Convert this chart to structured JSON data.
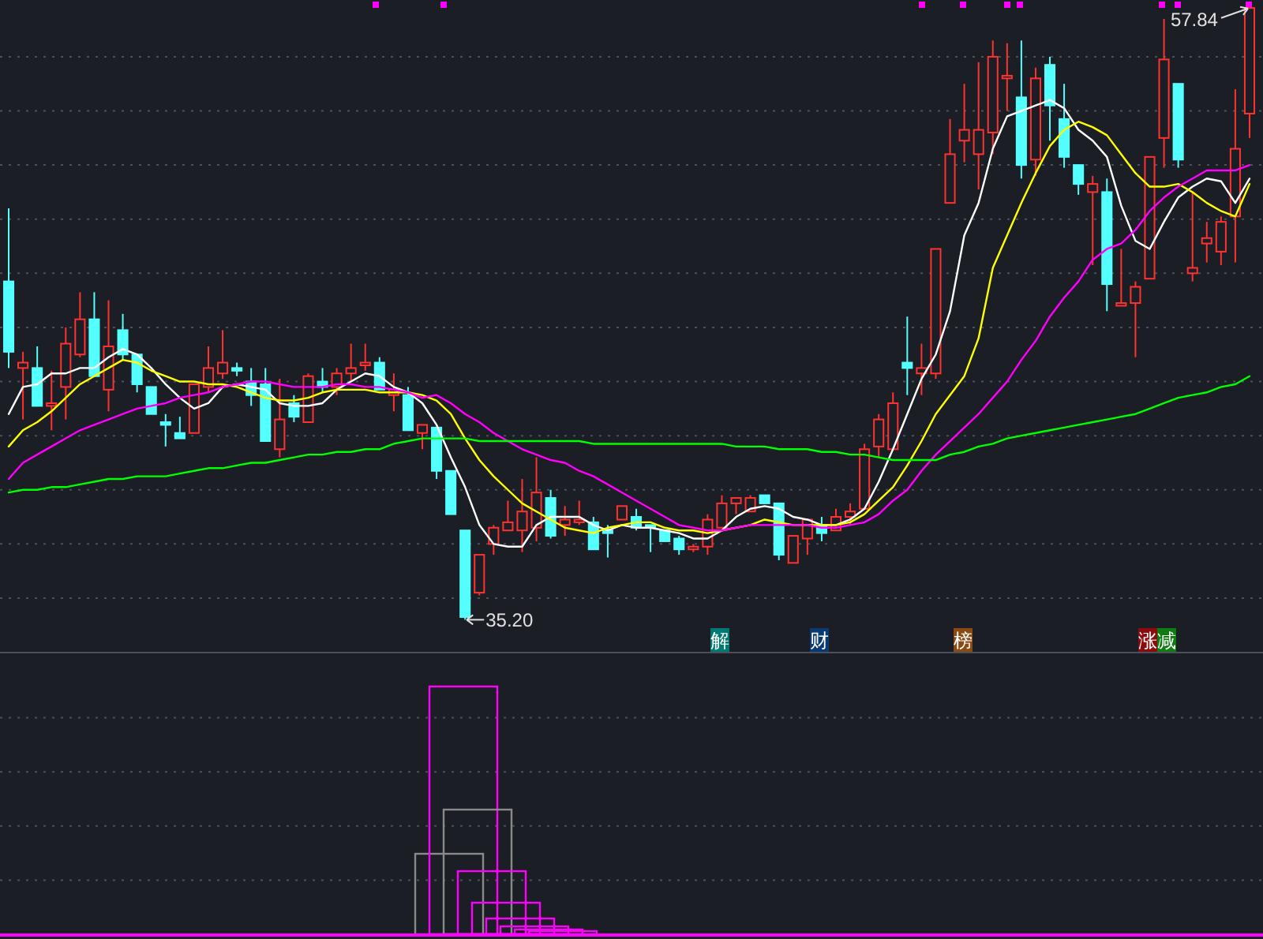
{
  "chart_data": {
    "type": "candlestick",
    "categories": [
      null,
      null,
      null,
      null,
      null,
      null,
      null,
      null,
      null,
      null,
      null,
      null,
      null,
      null,
      null,
      null,
      null,
      null,
      null,
      null,
      null,
      null,
      null,
      null,
      null,
      null,
      null,
      null,
      null,
      null,
      null,
      null,
      null,
      null,
      null,
      null,
      null,
      null,
      null,
      null,
      null,
      null,
      null,
      null,
      null,
      null,
      null,
      null,
      null,
      null,
      null,
      null,
      null,
      null,
      null,
      null,
      null,
      null,
      null,
      null,
      null,
      null,
      null,
      null,
      null,
      null,
      null,
      null,
      null,
      null,
      null,
      null,
      null,
      null,
      null,
      null,
      null,
      null,
      null,
      null,
      null,
      null,
      null,
      null,
      null,
      null,
      null,
      null
    ],
    "ohlc": [
      [
        47.7,
        50.4,
        44.5,
        45.1
      ],
      [
        44.5,
        45.1,
        42.6,
        44.7
      ],
      [
        44.5,
        45.3,
        43.1,
        43.1
      ],
      [
        43.1,
        44.4,
        42.2,
        43.2
      ],
      [
        43.8,
        46.0,
        42.6,
        45.4
      ],
      [
        45.0,
        47.3,
        44.9,
        46.3
      ],
      [
        46.3,
        47.3,
        44.2,
        44.2
      ],
      [
        43.7,
        47.0,
        42.9,
        45.3
      ],
      [
        45.9,
        46.5,
        44.8,
        45.0
      ],
      [
        45.0,
        45.0,
        43.6,
        43.9
      ],
      [
        43.8,
        43.8,
        42.8,
        42.8
      ],
      [
        42.5,
        42.8,
        41.6,
        42.4
      ],
      [
        42.1,
        42.7,
        41.9,
        41.9
      ],
      [
        42.1,
        43.9,
        42.1,
        43.9
      ],
      [
        43.8,
        45.3,
        43.6,
        44.5
      ],
      [
        44.3,
        45.9,
        44.1,
        44.7
      ],
      [
        44.5,
        44.7,
        44.2,
        44.4
      ],
      [
        44.0,
        44.5,
        43.1,
        43.5
      ],
      [
        43.9,
        44.5,
        41.8,
        41.8
      ],
      [
        41.5,
        44.1,
        41.2,
        42.6
      ],
      [
        43.2,
        43.5,
        42.5,
        42.7
      ],
      [
        42.5,
        44.3,
        42.5,
        44.2
      ],
      [
        44.0,
        44.5,
        43.6,
        43.8
      ],
      [
        43.8,
        44.5,
        43.5,
        44.3
      ],
      [
        44.3,
        45.4,
        44.0,
        44.5
      ],
      [
        44.6,
        45.4,
        44.4,
        44.7
      ],
      [
        44.7,
        44.9,
        43.7,
        43.7
      ],
      [
        43.5,
        44.3,
        42.9,
        43.7
      ],
      [
        43.5,
        43.8,
        42.2,
        42.2
      ],
      [
        42.1,
        42.4,
        41.5,
        42.4
      ],
      [
        42.3,
        42.3,
        40.4,
        40.7
      ],
      [
        40.7,
        40.7,
        39.1,
        39.1
      ],
      [
        38.5,
        38.5,
        35.2,
        35.3
      ],
      [
        36.2,
        37.6,
        36.1,
        37.6
      ],
      [
        38.0,
        38.7,
        37.6,
        38.6
      ],
      [
        38.5,
        39.6,
        38.5,
        38.8
      ],
      [
        38.5,
        40.4,
        37.7,
        39.2
      ],
      [
        38.6,
        41.2,
        38.1,
        39.9
      ],
      [
        39.7,
        40.0,
        38.2,
        38.3
      ],
      [
        38.7,
        39.4,
        38.3,
        38.9
      ],
      [
        38.8,
        39.6,
        38.7,
        38.9
      ],
      [
        38.8,
        39.0,
        37.8,
        37.8
      ],
      [
        38.5,
        38.7,
        37.5,
        38.4
      ],
      [
        38.9,
        39.4,
        38.9,
        39.4
      ],
      [
        39.0,
        39.3,
        38.5,
        38.6
      ],
      [
        38.7,
        38.7,
        37.7,
        38.6
      ],
      [
        38.5,
        38.5,
        38.1,
        38.1
      ],
      [
        38.2,
        38.3,
        37.6,
        37.8
      ],
      [
        37.8,
        38.0,
        37.7,
        37.9
      ],
      [
        37.9,
        39.1,
        37.6,
        38.9
      ],
      [
        38.6,
        39.8,
        38.6,
        39.5
      ],
      [
        39.5,
        39.7,
        39.1,
        39.7
      ],
      [
        39.2,
        39.8,
        39.2,
        39.7
      ],
      [
        39.8,
        39.8,
        39.5,
        39.5
      ],
      [
        39.5,
        39.5,
        37.4,
        37.6
      ],
      [
        37.3,
        38.3,
        37.3,
        38.3
      ],
      [
        38.2,
        38.9,
        37.6,
        38.9
      ],
      [
        38.7,
        39.0,
        38.1,
        38.4
      ],
      [
        38.5,
        39.3,
        38.5,
        39.0
      ],
      [
        39.0,
        39.5,
        38.7,
        39.2
      ],
      [
        39.3,
        41.7,
        39.3,
        41.5
      ],
      [
        41.6,
        42.8,
        41.2,
        42.6
      ],
      [
        41.5,
        43.6,
        41.5,
        43.2
      ],
      [
        44.7,
        46.4,
        43.5,
        44.5
      ],
      [
        44.3,
        45.4,
        43.5,
        44.5
      ],
      [
        44.3,
        48.9,
        44.1,
        48.9
      ],
      [
        50.6,
        53.7,
        50.6,
        52.4
      ],
      [
        52.9,
        55.0,
        52.1,
        53.3
      ],
      [
        52.4,
        55.8,
        51.1,
        53.3
      ],
      [
        53.2,
        56.6,
        52.4,
        56.0
      ],
      [
        55.2,
        56.5,
        54.0,
        55.3
      ],
      [
        54.5,
        56.6,
        51.5,
        52.0
      ],
      [
        52.2,
        55.6,
        51.6,
        55.2
      ],
      [
        55.7,
        56.0,
        52.9,
        54.2
      ],
      [
        53.7,
        55.0,
        51.9,
        52.3
      ],
      [
        52.0,
        52.0,
        50.9,
        51.3
      ],
      [
        51.0,
        51.6,
        48.3,
        51.3
      ],
      [
        51.0,
        51.5,
        46.6,
        47.6
      ],
      [
        46.8,
        48.9,
        46.8,
        46.9
      ],
      [
        46.9,
        47.7,
        44.9,
        47.5
      ],
      [
        47.8,
        52.3,
        47.8,
        52.3
      ],
      [
        53.0,
        57.4,
        51.9,
        55.9
      ],
      [
        55.0,
        55.0,
        51.9,
        52.2
      ],
      [
        48.0,
        51.0,
        47.7,
        48.2
      ],
      [
        49.1,
        49.9,
        48.4,
        49.3
      ],
      [
        48.8,
        50.1,
        48.3,
        49.9
      ],
      [
        50.1,
        54.8,
        48.4,
        52.6
      ],
      [
        53.9,
        57.84,
        53.0,
        57.8
      ]
    ],
    "colors": [
      "#54ffff",
      "#ff3232",
      "#54ffff",
      "#ff3232",
      "#ff3232",
      "#ff3232",
      "#54ffff",
      "#ff3232",
      "#54ffff",
      "#54ffff",
      "#54ffff",
      "#54ffff",
      "#54ffff",
      "#ff3232",
      "#ff3232",
      "#ff3232",
      "#54ffff",
      "#54ffff",
      "#54ffff",
      "#ff3232",
      "#54ffff",
      "#ff3232",
      "#54ffff",
      "#ff3232",
      "#ff3232",
      "#ff3232",
      "#54ffff",
      "#ff3232",
      "#54ffff",
      "#ff3232",
      "#54ffff",
      "#54ffff",
      "#54ffff",
      "#ff3232",
      "#ff3232",
      "#ff3232",
      "#ff3232",
      "#ff3232",
      "#54ffff",
      "#ff3232",
      "#ff3232",
      "#54ffff",
      "#54ffff",
      "#ff3232",
      "#54ffff",
      "#54ffff",
      "#54ffff",
      "#54ffff",
      "#ff3232",
      "#ff3232",
      "#ff3232",
      "#ff3232",
      "#ff3232",
      "#54ffff",
      "#54ffff",
      "#ff3232",
      "#ff3232",
      "#54ffff",
      "#ff3232",
      "#ff3232",
      "#ff3232",
      "#ff3232",
      "#ff3232",
      "#54ffff",
      "#ff3232",
      "#ff3232",
      "#ff3232",
      "#ff3232",
      "#ff3232",
      "#ff3232",
      "#ff3232",
      "#54ffff",
      "#ff3232",
      "#54ffff",
      "#54ffff",
      "#54ffff",
      "#ff3232",
      "#54ffff",
      "#ff3232",
      "#ff3232",
      "#ff3232",
      "#ff3232",
      "#54ffff",
      "#ff3232",
      "#ff3232",
      "#ff3232",
      "#ff3232",
      "#ff3232"
    ],
    "series": [
      {
        "type": "line",
        "color": "#ffffff",
        "values": [
          42.8,
          43.8,
          43.9,
          44.3,
          44.3,
          44.5,
          44.5,
          44.9,
          45.2,
          45.0,
          44.5,
          43.9,
          43.4,
          43.0,
          43.2,
          43.8,
          43.9,
          43.8,
          43.7,
          43.2,
          43.1,
          43.1,
          43.2,
          43.7,
          44.0,
          44.3,
          44.2,
          43.8,
          43.6,
          43.2,
          42.4,
          41.2,
          40.1,
          38.7,
          38.0,
          37.9,
          37.9,
          38.7,
          39.0,
          39.0,
          39.0,
          38.7,
          38.5,
          38.7,
          38.6,
          38.6,
          38.5,
          38.4,
          38.2,
          38.2,
          38.5,
          39.0,
          39.3,
          39.4,
          39.3,
          39.0,
          38.9,
          38.7,
          38.7,
          38.9,
          39.3,
          40.3,
          41.5,
          42.8,
          44.1,
          45.0,
          46.6,
          49.4,
          50.6,
          52.6,
          53.8,
          54.0,
          54.2,
          54.4,
          54.1,
          53.3,
          52.9,
          52.3,
          50.5,
          49.2,
          48.9,
          49.9,
          50.8,
          51.2,
          51.5,
          51.4,
          50.6,
          51.5
        ]
      },
      {
        "type": "line",
        "color": "#ffff00",
        "values": [
          41.6,
          42.2,
          42.5,
          42.9,
          43.4,
          43.9,
          44.2,
          44.5,
          44.8,
          44.7,
          44.4,
          44.2,
          44.0,
          44.0,
          43.9,
          43.9,
          43.8,
          43.6,
          43.4,
          43.3,
          43.3,
          43.4,
          43.6,
          43.7,
          43.7,
          43.7,
          43.6,
          43.6,
          43.6,
          43.5,
          43.3,
          42.8,
          41.9,
          41.1,
          40.5,
          40.0,
          39.5,
          39.2,
          38.9,
          38.6,
          38.5,
          38.4,
          38.6,
          38.7,
          38.8,
          38.8,
          38.6,
          38.5,
          38.5,
          38.4,
          38.5,
          38.6,
          38.7,
          38.9,
          38.8,
          38.7,
          38.7,
          38.7,
          38.7,
          38.8,
          39.1,
          39.6,
          40.1,
          40.9,
          41.8,
          42.8,
          43.5,
          44.2,
          45.6,
          48.2,
          49.4,
          50.6,
          51.7,
          52.7,
          53.3,
          53.6,
          53.4,
          53.1,
          52.4,
          51.7,
          51.2,
          51.2,
          51.3,
          51.0,
          50.6,
          50.3,
          50.1,
          51.3
        ]
      },
      {
        "type": "line",
        "color": "#ff00ff",
        "values": [
          40.4,
          41.0,
          41.3,
          41.6,
          41.9,
          42.2,
          42.4,
          42.6,
          42.8,
          43.0,
          43.1,
          43.2,
          43.4,
          43.5,
          43.6,
          43.8,
          43.9,
          44.0,
          44.0,
          43.9,
          43.8,
          43.8,
          43.8,
          43.9,
          43.9,
          43.8,
          43.8,
          43.7,
          43.6,
          43.4,
          43.5,
          43.2,
          42.8,
          42.5,
          42.1,
          41.8,
          41.5,
          41.3,
          41.1,
          41.0,
          40.7,
          40.5,
          40.2,
          39.9,
          39.6,
          39.3,
          39.0,
          38.7,
          38.6,
          38.5,
          38.5,
          38.6,
          38.7,
          38.7,
          38.7,
          38.7,
          38.7,
          38.6,
          38.6,
          38.7,
          38.8,
          39.1,
          39.6,
          40.0,
          40.7,
          41.3,
          41.8,
          42.3,
          42.8,
          43.4,
          44.0,
          44.8,
          45.5,
          46.4,
          47.1,
          47.7,
          48.5,
          48.9,
          49.1,
          49.6,
          50.3,
          50.8,
          51.2,
          51.5,
          51.8,
          51.8,
          51.8,
          52.0
        ]
      },
      {
        "type": "line",
        "color": "#00ff00",
        "values": [
          39.9,
          40.0,
          40.0,
          40.1,
          40.1,
          40.2,
          40.3,
          40.4,
          40.4,
          40.5,
          40.5,
          40.5,
          40.6,
          40.7,
          40.8,
          40.8,
          40.9,
          41.0,
          41.0,
          41.1,
          41.2,
          41.3,
          41.3,
          41.4,
          41.4,
          41.5,
          41.5,
          41.7,
          41.8,
          41.9,
          41.9,
          41.9,
          41.9,
          41.8,
          41.8,
          41.8,
          41.8,
          41.8,
          41.8,
          41.8,
          41.8,
          41.7,
          41.7,
          41.7,
          41.7,
          41.7,
          41.7,
          41.7,
          41.7,
          41.7,
          41.7,
          41.6,
          41.6,
          41.6,
          41.5,
          41.5,
          41.5,
          41.4,
          41.4,
          41.3,
          41.3,
          41.2,
          41.1,
          41.1,
          41.1,
          41.1,
          41.3,
          41.4,
          41.6,
          41.7,
          41.9,
          42.0,
          42.1,
          42.2,
          42.3,
          42.4,
          42.5,
          42.6,
          42.7,
          42.8,
          43.0,
          43.2,
          43.4,
          43.5,
          43.6,
          43.8,
          43.9,
          44.2
        ]
      }
    ],
    "yticks": [
      {
        "value": 36,
        "label": null
      },
      {
        "value": 38,
        "label": null
      },
      {
        "value": 40,
        "label": null
      },
      {
        "value": 42,
        "label": null
      },
      {
        "value": 44,
        "label": null
      },
      {
        "value": 46,
        "label": null
      },
      {
        "value": 48,
        "label": null
      },
      {
        "value": 50,
        "label": null
      },
      {
        "value": 52,
        "label": null
      },
      {
        "value": 54,
        "label": null
      },
      {
        "value": 56,
        "label": null
      }
    ],
    "grid": "y",
    "annotations": [
      "35.20",
      "57.84",
      "解",
      "财",
      "榜",
      "涨",
      "减"
    ]
  }
}
